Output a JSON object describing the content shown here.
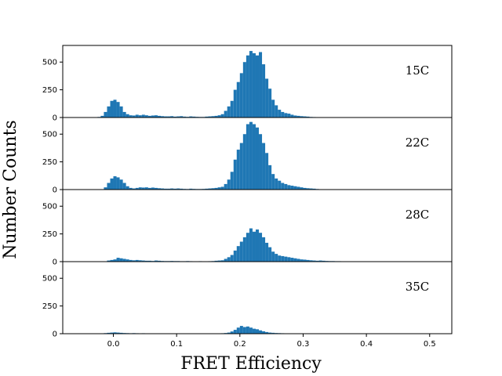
{
  "chart_data": {
    "type": "bar",
    "xlabel": "FRET Efficiency",
    "ylabel": "Number Counts",
    "xlim": [
      -0.08,
      0.535
    ],
    "xticks": [
      "0.0",
      "0.1",
      "0.2",
      "0.3",
      "0.4",
      "0.5"
    ],
    "ylim": [
      0,
      650
    ],
    "yticks": [
      "0",
      "250",
      "500"
    ],
    "bar_color": "#1f77b4",
    "grid": false,
    "bin_width": 0.005,
    "panels": [
      {
        "label": "15C",
        "bins": [
          [
            -0.025,
            5
          ],
          [
            -0.02,
            15
          ],
          [
            -0.015,
            50
          ],
          [
            -0.01,
            100
          ],
          [
            -0.005,
            150
          ],
          [
            0.0,
            160
          ],
          [
            0.005,
            140
          ],
          [
            0.01,
            100
          ],
          [
            0.015,
            50
          ],
          [
            0.02,
            30
          ],
          [
            0.025,
            20
          ],
          [
            0.03,
            18
          ],
          [
            0.035,
            25
          ],
          [
            0.04,
            20
          ],
          [
            0.045,
            25
          ],
          [
            0.05,
            20
          ],
          [
            0.055,
            15
          ],
          [
            0.06,
            18
          ],
          [
            0.065,
            20
          ],
          [
            0.07,
            15
          ],
          [
            0.075,
            12
          ],
          [
            0.08,
            10
          ],
          [
            0.085,
            10
          ],
          [
            0.09,
            12
          ],
          [
            0.095,
            8
          ],
          [
            0.1,
            10
          ],
          [
            0.105,
            12
          ],
          [
            0.11,
            8
          ],
          [
            0.115,
            6
          ],
          [
            0.12,
            10
          ],
          [
            0.125,
            8
          ],
          [
            0.13,
            6
          ],
          [
            0.135,
            5
          ],
          [
            0.14,
            5
          ],
          [
            0.145,
            8
          ],
          [
            0.15,
            10
          ],
          [
            0.155,
            12
          ],
          [
            0.16,
            15
          ],
          [
            0.165,
            20
          ],
          [
            0.17,
            30
          ],
          [
            0.175,
            60
          ],
          [
            0.18,
            100
          ],
          [
            0.185,
            150
          ],
          [
            0.19,
            250
          ],
          [
            0.195,
            320
          ],
          [
            0.2,
            400
          ],
          [
            0.205,
            500
          ],
          [
            0.21,
            560
          ],
          [
            0.215,
            600
          ],
          [
            0.22,
            580
          ],
          [
            0.225,
            560
          ],
          [
            0.23,
            590
          ],
          [
            0.235,
            480
          ],
          [
            0.24,
            350
          ],
          [
            0.245,
            260
          ],
          [
            0.25,
            160
          ],
          [
            0.255,
            110
          ],
          [
            0.26,
            70
          ],
          [
            0.265,
            50
          ],
          [
            0.27,
            40
          ],
          [
            0.275,
            35
          ],
          [
            0.28,
            25
          ],
          [
            0.285,
            18
          ],
          [
            0.29,
            15
          ],
          [
            0.295,
            12
          ],
          [
            0.3,
            10
          ],
          [
            0.305,
            8
          ],
          [
            0.31,
            5
          ],
          [
            0.315,
            4
          ],
          [
            0.32,
            3
          ],
          [
            0.325,
            3
          ],
          [
            0.33,
            2
          ],
          [
            0.335,
            2
          ]
        ]
      },
      {
        "label": "22C",
        "bins": [
          [
            -0.015,
            20
          ],
          [
            -0.01,
            60
          ],
          [
            -0.005,
            100
          ],
          [
            0.0,
            120
          ],
          [
            0.005,
            110
          ],
          [
            0.01,
            90
          ],
          [
            0.015,
            60
          ],
          [
            0.02,
            30
          ],
          [
            0.025,
            15
          ],
          [
            0.03,
            10
          ],
          [
            0.035,
            15
          ],
          [
            0.04,
            20
          ],
          [
            0.045,
            18
          ],
          [
            0.05,
            20
          ],
          [
            0.055,
            15
          ],
          [
            0.06,
            18
          ],
          [
            0.065,
            15
          ],
          [
            0.07,
            12
          ],
          [
            0.075,
            10
          ],
          [
            0.08,
            8
          ],
          [
            0.085,
            8
          ],
          [
            0.09,
            10
          ],
          [
            0.095,
            8
          ],
          [
            0.1,
            10
          ],
          [
            0.105,
            8
          ],
          [
            0.11,
            6
          ],
          [
            0.115,
            5
          ],
          [
            0.12,
            8
          ],
          [
            0.125,
            6
          ],
          [
            0.13,
            5
          ],
          [
            0.135,
            5
          ],
          [
            0.14,
            6
          ],
          [
            0.145,
            8
          ],
          [
            0.15,
            10
          ],
          [
            0.155,
            12
          ],
          [
            0.16,
            15
          ],
          [
            0.165,
            20
          ],
          [
            0.17,
            25
          ],
          [
            0.175,
            50
          ],
          [
            0.18,
            90
          ],
          [
            0.185,
            160
          ],
          [
            0.19,
            270
          ],
          [
            0.195,
            360
          ],
          [
            0.2,
            420
          ],
          [
            0.205,
            500
          ],
          [
            0.21,
            590
          ],
          [
            0.215,
            610
          ],
          [
            0.22,
            590
          ],
          [
            0.225,
            560
          ],
          [
            0.23,
            500
          ],
          [
            0.235,
            420
          ],
          [
            0.24,
            330
          ],
          [
            0.245,
            220
          ],
          [
            0.25,
            140
          ],
          [
            0.255,
            100
          ],
          [
            0.26,
            80
          ],
          [
            0.265,
            60
          ],
          [
            0.27,
            50
          ],
          [
            0.275,
            40
          ],
          [
            0.28,
            35
          ],
          [
            0.285,
            30
          ],
          [
            0.29,
            25
          ],
          [
            0.295,
            20
          ],
          [
            0.3,
            15
          ],
          [
            0.305,
            12
          ],
          [
            0.31,
            10
          ],
          [
            0.315,
            8
          ],
          [
            0.32,
            5
          ],
          [
            0.325,
            3
          ],
          [
            0.33,
            2
          ]
        ]
      },
      {
        "label": "28C",
        "bins": [
          [
            -0.01,
            10
          ],
          [
            -0.005,
            15
          ],
          [
            0.0,
            20
          ],
          [
            0.005,
            35
          ],
          [
            0.01,
            30
          ],
          [
            0.015,
            25
          ],
          [
            0.02,
            20
          ],
          [
            0.025,
            15
          ],
          [
            0.03,
            12
          ],
          [
            0.035,
            15
          ],
          [
            0.04,
            12
          ],
          [
            0.045,
            10
          ],
          [
            0.05,
            8
          ],
          [
            0.055,
            8
          ],
          [
            0.06,
            6
          ],
          [
            0.065,
            10
          ],
          [
            0.07,
            8
          ],
          [
            0.075,
            6
          ],
          [
            0.08,
            5
          ],
          [
            0.085,
            5
          ],
          [
            0.09,
            6
          ],
          [
            0.095,
            5
          ],
          [
            0.1,
            5
          ],
          [
            0.105,
            4
          ],
          [
            0.11,
            4
          ],
          [
            0.115,
            5
          ],
          [
            0.12,
            4
          ],
          [
            0.125,
            3
          ],
          [
            0.13,
            3
          ],
          [
            0.135,
            4
          ],
          [
            0.14,
            3
          ],
          [
            0.145,
            3
          ],
          [
            0.15,
            4
          ],
          [
            0.155,
            5
          ],
          [
            0.16,
            8
          ],
          [
            0.165,
            10
          ],
          [
            0.17,
            12
          ],
          [
            0.175,
            25
          ],
          [
            0.18,
            40
          ],
          [
            0.185,
            60
          ],
          [
            0.19,
            100
          ],
          [
            0.195,
            140
          ],
          [
            0.2,
            180
          ],
          [
            0.205,
            220
          ],
          [
            0.21,
            260
          ],
          [
            0.215,
            300
          ],
          [
            0.22,
            270
          ],
          [
            0.225,
            290
          ],
          [
            0.23,
            260
          ],
          [
            0.235,
            220
          ],
          [
            0.24,
            170
          ],
          [
            0.245,
            130
          ],
          [
            0.25,
            90
          ],
          [
            0.255,
            70
          ],
          [
            0.26,
            55
          ],
          [
            0.265,
            50
          ],
          [
            0.27,
            45
          ],
          [
            0.275,
            40
          ],
          [
            0.28,
            35
          ],
          [
            0.285,
            30
          ],
          [
            0.29,
            25
          ],
          [
            0.295,
            20
          ],
          [
            0.3,
            18
          ],
          [
            0.305,
            15
          ],
          [
            0.31,
            12
          ],
          [
            0.315,
            10
          ],
          [
            0.32,
            8
          ],
          [
            0.325,
            10
          ],
          [
            0.33,
            8
          ],
          [
            0.335,
            6
          ],
          [
            0.34,
            5
          ],
          [
            0.345,
            5
          ],
          [
            0.35,
            4
          ],
          [
            0.355,
            4
          ],
          [
            0.36,
            3
          ],
          [
            0.365,
            3
          ],
          [
            0.37,
            3
          ],
          [
            0.375,
            2
          ],
          [
            0.38,
            2
          ],
          [
            0.385,
            3
          ],
          [
            0.39,
            2
          ],
          [
            0.395,
            2
          ],
          [
            0.4,
            2
          ],
          [
            0.405,
            2
          ],
          [
            0.41,
            2
          ],
          [
            0.415,
            2
          ],
          [
            0.42,
            2
          ],
          [
            0.425,
            2
          ],
          [
            0.43,
            2
          ],
          [
            0.435,
            2
          ],
          [
            0.44,
            2
          ],
          [
            0.445,
            2
          ]
        ]
      },
      {
        "label": "35C",
        "bins": [
          [
            -0.015,
            5
          ],
          [
            -0.01,
            8
          ],
          [
            -0.005,
            10
          ],
          [
            0.0,
            12
          ],
          [
            0.005,
            10
          ],
          [
            0.01,
            8
          ],
          [
            0.015,
            6
          ],
          [
            0.02,
            5
          ],
          [
            0.025,
            4
          ],
          [
            0.03,
            5
          ],
          [
            0.035,
            4
          ],
          [
            0.04,
            3
          ],
          [
            0.045,
            4
          ],
          [
            0.05,
            3
          ],
          [
            0.055,
            3
          ],
          [
            0.06,
            2
          ],
          [
            0.065,
            3
          ],
          [
            0.07,
            2
          ],
          [
            0.075,
            2
          ],
          [
            0.08,
            2
          ],
          [
            0.085,
            2
          ],
          [
            0.09,
            2
          ],
          [
            0.095,
            2
          ],
          [
            0.1,
            2
          ],
          [
            0.105,
            2
          ],
          [
            0.11,
            1
          ],
          [
            0.115,
            1
          ],
          [
            0.12,
            1
          ],
          [
            0.125,
            1
          ],
          [
            0.13,
            1
          ],
          [
            0.135,
            1
          ],
          [
            0.14,
            1
          ],
          [
            0.145,
            1
          ],
          [
            0.15,
            2
          ],
          [
            0.155,
            2
          ],
          [
            0.16,
            3
          ],
          [
            0.165,
            3
          ],
          [
            0.17,
            4
          ],
          [
            0.175,
            6
          ],
          [
            0.18,
            10
          ],
          [
            0.185,
            20
          ],
          [
            0.19,
            35
          ],
          [
            0.195,
            55
          ],
          [
            0.2,
            70
          ],
          [
            0.205,
            60
          ],
          [
            0.21,
            65
          ],
          [
            0.215,
            55
          ],
          [
            0.22,
            45
          ],
          [
            0.225,
            40
          ],
          [
            0.23,
            30
          ],
          [
            0.235,
            22
          ],
          [
            0.24,
            15
          ],
          [
            0.245,
            10
          ],
          [
            0.25,
            8
          ],
          [
            0.255,
            6
          ],
          [
            0.26,
            5
          ],
          [
            0.265,
            4
          ],
          [
            0.27,
            3
          ],
          [
            0.275,
            3
          ],
          [
            0.28,
            2
          ],
          [
            0.285,
            2
          ],
          [
            0.29,
            2
          ],
          [
            0.295,
            2
          ],
          [
            0.3,
            1
          ],
          [
            0.305,
            1
          ],
          [
            0.31,
            1
          ]
        ]
      }
    ]
  }
}
